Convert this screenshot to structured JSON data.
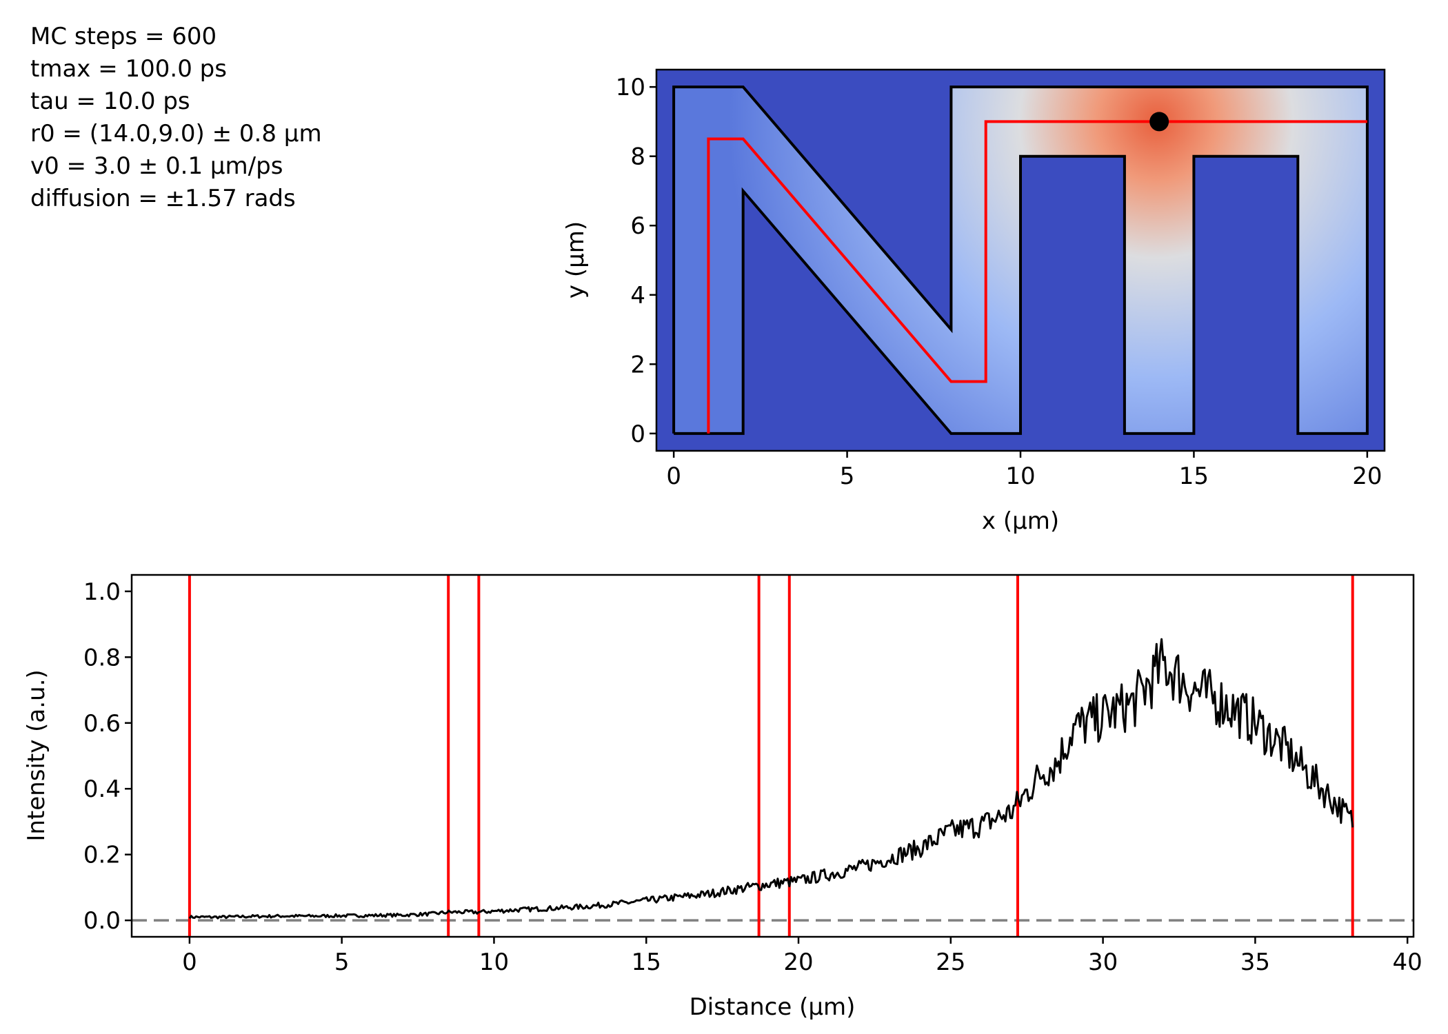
{
  "params": {
    "lines": [
      "MC steps = 600",
      "tmax = 100.0 ps",
      "tau = 10.0 ps",
      "r0 = (14.0,9.0) ± 0.8 µm",
      "v0 = 3.0 ± 0.1 µm/ps",
      "diffusion = ±1.57 rads"
    ]
  },
  "chart_data": [
    {
      "type": "heatmap",
      "xlabel": "x (µm)",
      "ylabel": "y (µm)",
      "xlim": [
        -0.5,
        20.5
      ],
      "ylim": [
        -0.5,
        10.5
      ],
      "xticks": [
        0,
        5,
        10,
        15,
        20
      ],
      "yticks": [
        0,
        2,
        4,
        6,
        8,
        10
      ],
      "colormap": "coolwarm",
      "colors": {
        "background": "#3b4cc0",
        "hot": "#e8603e",
        "boundary": "#000000",
        "path": "#ff0000",
        "marker": "#000000"
      },
      "boundary": [
        [
          0,
          0
        ],
        [
          0,
          10
        ],
        [
          2,
          10
        ],
        [
          8,
          3
        ],
        [
          8,
          10
        ],
        [
          20,
          10
        ],
        [
          20,
          0
        ],
        [
          18,
          0
        ],
        [
          18,
          8
        ],
        [
          15,
          8
        ],
        [
          15,
          0
        ],
        [
          13,
          0
        ],
        [
          13,
          8
        ],
        [
          10,
          8
        ],
        [
          10,
          0
        ],
        [
          8,
          0
        ],
        [
          2,
          7
        ],
        [
          2,
          0
        ],
        [
          0,
          0
        ]
      ],
      "path": [
        [
          1,
          0
        ],
        [
          1,
          8.5
        ],
        [
          2,
          8.5
        ],
        [
          8,
          1.5
        ],
        [
          9,
          1.5
        ],
        [
          9,
          9
        ],
        [
          20,
          9
        ]
      ],
      "source": {
        "x": 14.0,
        "y": 9.0
      }
    },
    {
      "type": "line",
      "xlabel": "Distance (µm)",
      "ylabel": "Intensity (a.u.)",
      "xlim": [
        -1.9,
        40.2
      ],
      "ylim": [
        -0.05,
        1.05
      ],
      "xticks": [
        0,
        5,
        10,
        15,
        20,
        25,
        30,
        35,
        40
      ],
      "yticks": [
        0.0,
        0.2,
        0.4,
        0.6,
        0.8,
        1.0
      ],
      "vlines": [
        0,
        8.5,
        9.5,
        18.7,
        19.7,
        27.2,
        38.2
      ],
      "baseline": 0,
      "colors": {
        "line": "#000000",
        "vlines": "#ff0000",
        "baseline": "#808080"
      },
      "series": [
        {
          "x": [
            0,
            1,
            2,
            3,
            4,
            5,
            6,
            7,
            8,
            8.5,
            9,
            9.5,
            10,
            11,
            12,
            13,
            14,
            15,
            16,
            17,
            18,
            19,
            20,
            21,
            22,
            23,
            24,
            25,
            26,
            27,
            28,
            28.5,
            29,
            30,
            31,
            32,
            33,
            34,
            35,
            36,
            37,
            38,
            38.2
          ],
          "y": [
            0.01,
            0.01,
            0.012,
            0.013,
            0.013,
            0.014,
            0.015,
            0.016,
            0.02,
            0.025,
            0.025,
            0.025,
            0.028,
            0.033,
            0.037,
            0.042,
            0.05,
            0.06,
            0.07,
            0.08,
            0.095,
            0.11,
            0.12,
            0.14,
            0.16,
            0.19,
            0.22,
            0.27,
            0.29,
            0.33,
            0.45,
            0.48,
            0.58,
            0.62,
            0.66,
            0.78,
            0.7,
            0.66,
            0.6,
            0.52,
            0.42,
            0.32,
            0.3
          ]
        }
      ]
    }
  ]
}
